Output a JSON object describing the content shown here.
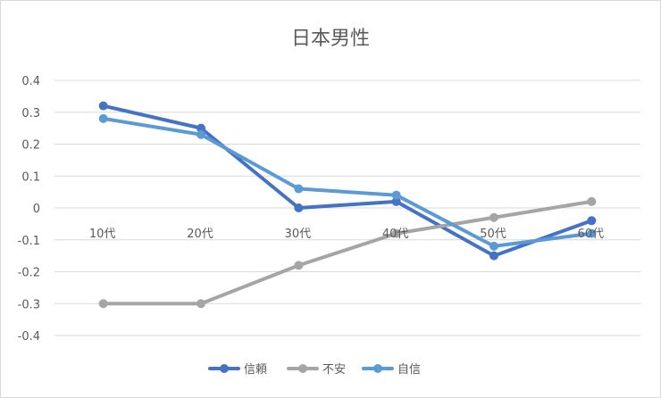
{
  "chart_data": {
    "type": "line",
    "title": "日本男性",
    "categories": [
      "10代",
      "20代",
      "30代",
      "40代",
      "50代",
      "60代"
    ],
    "ylim": [
      -0.4,
      0.4
    ],
    "yticks": [
      "0.4",
      "0.3",
      "0.2",
      "0.1",
      "0",
      "-0.1",
      "-0.2",
      "-0.3",
      "-0.4"
    ],
    "ytick_values": [
      0.4,
      0.3,
      0.2,
      0.1,
      0,
      -0.1,
      -0.2,
      -0.3,
      -0.4
    ],
    "grid": true,
    "legend_position": "bottom",
    "series": [
      {
        "name": "信頼",
        "color": "#4472c4",
        "values": [
          0.32,
          0.25,
          0.0,
          0.02,
          -0.15,
          -0.04
        ]
      },
      {
        "name": "不安",
        "color": "#a5a5a5",
        "values": [
          -0.3,
          -0.3,
          -0.18,
          -0.08,
          -0.03,
          0.02
        ]
      },
      {
        "name": "自信",
        "color": "#5b9bd5",
        "values": [
          0.28,
          0.23,
          0.06,
          0.04,
          -0.12,
          -0.08
        ]
      }
    ]
  }
}
